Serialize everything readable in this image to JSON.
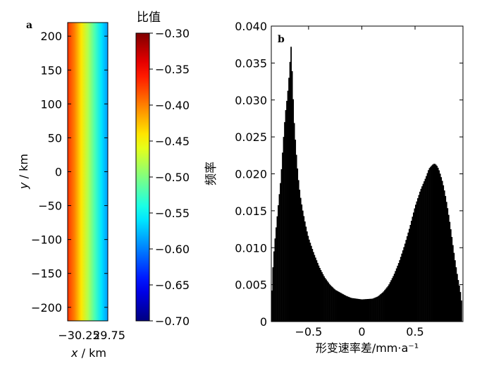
{
  "chart_data": [
    {
      "panel_label": "a",
      "type": "heatmap",
      "xlabel": "x / km",
      "ylabel": "y / km",
      "xlim": [
        -30.25,
        29.75
      ],
      "ylim": [
        -220,
        220
      ],
      "x_tick_labels": [
        "−30.25",
        "29.75"
      ],
      "y_ticks": [
        200,
        150,
        100,
        50,
        0,
        -50,
        -100,
        -150,
        -200
      ],
      "y_tick_labels": [
        "200",
        "150",
        "100",
        "50",
        "0",
        "−50",
        "−100",
        "−150",
        "−200"
      ],
      "value_profile_x": [
        -30.25,
        -20,
        -10,
        0,
        10,
        20,
        29.75
      ],
      "value_profile": [
        -0.37,
        -0.4,
        -0.44,
        -0.48,
        -0.52,
        -0.56,
        -0.59
      ],
      "colorbar": {
        "title": "比值",
        "range": [
          -0.7,
          -0.3
        ],
        "ticks": [
          -0.3,
          -0.35,
          -0.4,
          -0.45,
          -0.5,
          -0.55,
          -0.6,
          -0.65,
          -0.7
        ],
        "tick_labels": [
          "−0.30",
          "−0.35",
          "−0.40",
          "−0.45",
          "−0.50",
          "−0.55",
          "−0.60",
          "−0.65",
          "−0.70"
        ],
        "colormap": "jet"
      }
    },
    {
      "panel_label": "b",
      "type": "bar",
      "xlabel": "形变速率差/mm·a⁻¹",
      "ylabel": "频率",
      "xlim": [
        -0.85,
        0.95
      ],
      "ylim": [
        0,
        0.04
      ],
      "x_ticks": [
        -0.5,
        0,
        0.5
      ],
      "x_tick_labels": [
        "−0.5",
        "0",
        "0.5"
      ],
      "y_ticks": [
        0,
        0.005,
        0.01,
        0.015,
        0.02,
        0.025,
        0.03,
        0.035,
        0.04
      ],
      "y_tick_labels": [
        "0",
        "0.005",
        "0.010",
        "0.015",
        "0.020",
        "0.025",
        "0.030",
        "0.035",
        "0.040"
      ],
      "bar_color": "#000000",
      "bin_width": 0.01,
      "profile_x": [
        -0.85,
        -0.84,
        -0.83,
        -0.82,
        -0.8,
        -0.78,
        -0.76,
        -0.74,
        -0.72,
        -0.7,
        -0.69,
        -0.68,
        -0.67,
        -0.665,
        -0.66,
        -0.65,
        -0.64,
        -0.62,
        -0.6,
        -0.58,
        -0.56,
        -0.54,
        -0.52,
        -0.5,
        -0.45,
        -0.4,
        -0.35,
        -0.3,
        -0.25,
        -0.2,
        -0.15,
        -0.1,
        0,
        0.1,
        0.15,
        0.2,
        0.25,
        0.3,
        0.35,
        0.4,
        0.45,
        0.5,
        0.55,
        0.6,
        0.63,
        0.66,
        0.68,
        0.7,
        0.72,
        0.74,
        0.76,
        0.78,
        0.8,
        0.82,
        0.84,
        0.86,
        0.88,
        0.9,
        0.92,
        0.93,
        0.94
      ],
      "profile_y": [
        0.0022,
        0.0062,
        0.0085,
        0.0105,
        0.0135,
        0.0165,
        0.0195,
        0.024,
        0.028,
        0.0305,
        0.032,
        0.034,
        0.0363,
        0.0372,
        0.0356,
        0.0322,
        0.028,
        0.0235,
        0.0198,
        0.0172,
        0.0154,
        0.0139,
        0.0125,
        0.0113,
        0.0092,
        0.0074,
        0.006,
        0.005,
        0.0043,
        0.0039,
        0.0035,
        0.0032,
        0.003,
        0.0031,
        0.0034,
        0.004,
        0.0049,
        0.0063,
        0.0081,
        0.0103,
        0.0128,
        0.0156,
        0.0178,
        0.0195,
        0.0207,
        0.0212,
        0.0214,
        0.0212,
        0.0207,
        0.0198,
        0.0188,
        0.0174,
        0.0158,
        0.014,
        0.012,
        0.0098,
        0.0078,
        0.006,
        0.0045,
        0.0035,
        0.0022
      ]
    }
  ]
}
